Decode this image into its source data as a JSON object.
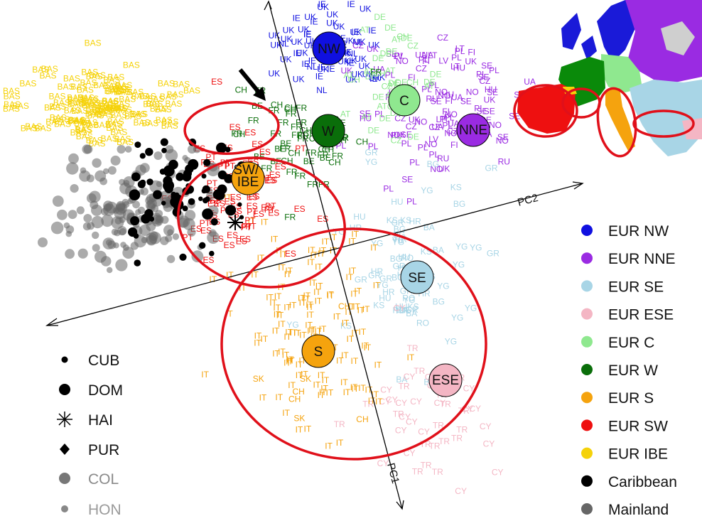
{
  "chart_data": {
    "type": "scatter",
    "title": "",
    "axes": [
      {
        "name": "axis-pc1",
        "label": "PC1"
      },
      {
        "name": "axis-pc2",
        "label": "PC2"
      }
    ],
    "series": [
      {
        "name": "EUR NW",
        "color": "#1010e0",
        "labels": [
          "IE",
          "IE",
          "IE",
          "UK",
          "UK",
          "UK",
          "UK",
          "IE",
          "UK",
          "NL",
          "NL",
          "UK",
          "IE",
          "UK",
          "UK",
          "UK"
        ]
      },
      {
        "name": "EUR NNE",
        "color": "#9a2be2",
        "labels": [
          "NO",
          "UK",
          "LV",
          "NO",
          "SE",
          "SE",
          "FI",
          "SE",
          "PL",
          "PL",
          "FI",
          "PL",
          "RU",
          "PL",
          "PL",
          "UA",
          "LT",
          "CZ",
          "CZ",
          "UA",
          "UK",
          "HU",
          "PL",
          "NO",
          "SE"
        ]
      },
      {
        "name": "EUR SE",
        "color": "#a8d5e6",
        "labels": [
          "HU",
          "HU",
          "BA",
          "YG",
          "YG",
          "BG",
          "KS",
          "YG",
          "GR",
          "HR",
          "GR",
          "YG",
          "RO",
          "BG",
          "KS",
          "GR",
          "HR"
        ]
      },
      {
        "name": "EUR ESE",
        "color": "#f4b6c4",
        "labels": [
          "TR",
          "TR",
          "TR",
          "TR",
          "CY",
          "CY",
          "CY",
          "CY",
          "CY",
          "CY",
          "TR"
        ]
      },
      {
        "name": "EUR C",
        "color": "#8fe88f",
        "labels": [
          "DE",
          "DE",
          "DE",
          "AT",
          "AT",
          "CZ",
          "CH",
          "DE",
          "AT"
        ]
      },
      {
        "name": "EUR W",
        "color": "#0a6e0a",
        "labels": [
          "FR",
          "FR",
          "FR",
          "CH",
          "CH",
          "FR",
          "BE",
          "FR",
          "CH",
          "FR",
          "FR",
          "BE",
          "CH",
          "FR"
        ]
      },
      {
        "name": "EUR S",
        "color": "#f5a30e",
        "labels": [
          "IT",
          "IT",
          "IT",
          "IT",
          "IT",
          "IT",
          "IT",
          "IT",
          "IT",
          "IT",
          "IT",
          "IT",
          "IT",
          "IT",
          "IT",
          "IT",
          "IT",
          "IT",
          "IT",
          "IT",
          "IT",
          "IT",
          "IT",
          "IT",
          "IT",
          "IT",
          "IT",
          "IT",
          "IT",
          "IT",
          "CH",
          "SK",
          "IT",
          "IT",
          "IT"
        ]
      },
      {
        "name": "EUR SW",
        "color": "#ee1010",
        "labels": [
          "ES",
          "ES",
          "ES",
          "ES",
          "ES",
          "PT",
          "PT",
          "PT",
          "PT",
          "ES",
          "ES",
          "ES",
          "ES",
          "ES",
          "ES",
          "PT",
          "PT",
          "ES"
        ]
      },
      {
        "name": "EUR IBE",
        "color": "#f5d20a",
        "labels": [
          "BAS",
          "BAS",
          "BAS",
          "BAS",
          "BAS",
          "BAS",
          "BAS",
          "BAS",
          "BAS",
          "BAS",
          "BAS",
          "BAS",
          "BAS",
          "BAS",
          "BAS",
          "BAS",
          "BAS",
          "BAS",
          "BAS",
          "BAS",
          "BAS",
          "BAS",
          "BAS",
          "BAS",
          "BAS",
          "BAS",
          "BAS",
          "BAS",
          "BAS",
          "BAS"
        ]
      },
      {
        "name": "Caribbean",
        "color": "#000000"
      },
      {
        "name": "Mainland",
        "color": "#666666"
      }
    ],
    "clusters": [
      {
        "label": "NW",
        "fill": "#1010e0"
      },
      {
        "label": "C",
        "fill": "#8fe88f"
      },
      {
        "label": "NNE",
        "fill": "#9a2be2"
      },
      {
        "label": "W",
        "fill": "#0a6e0a"
      },
      {
        "label": "SW/\nIBE",
        "fill": "#f5a30e"
      },
      {
        "label": "SE",
        "fill": "#a8d5e6"
      },
      {
        "label": "S",
        "fill": "#f5a30e"
      },
      {
        "label": "ESE",
        "fill": "#f4b6c4"
      }
    ],
    "admixed_legend": [
      {
        "label": "CUB",
        "marker": "small-dot",
        "color": "#000000"
      },
      {
        "label": "DOM",
        "marker": "large-dot",
        "color": "#000000"
      },
      {
        "label": "HAI",
        "marker": "asterisk",
        "color": "#000000"
      },
      {
        "label": "PUR",
        "marker": "diamond",
        "color": "#000000"
      },
      {
        "label": "COL",
        "marker": "large-dot",
        "color": "#777777"
      },
      {
        "label": "HON",
        "marker": "small-dot",
        "color": "#888888"
      }
    ],
    "legend_position": "right",
    "grid": false
  },
  "colors": {
    "circle_outline": "#e0101a",
    "axis": "#000000",
    "map_background": "#cfcfcf"
  }
}
